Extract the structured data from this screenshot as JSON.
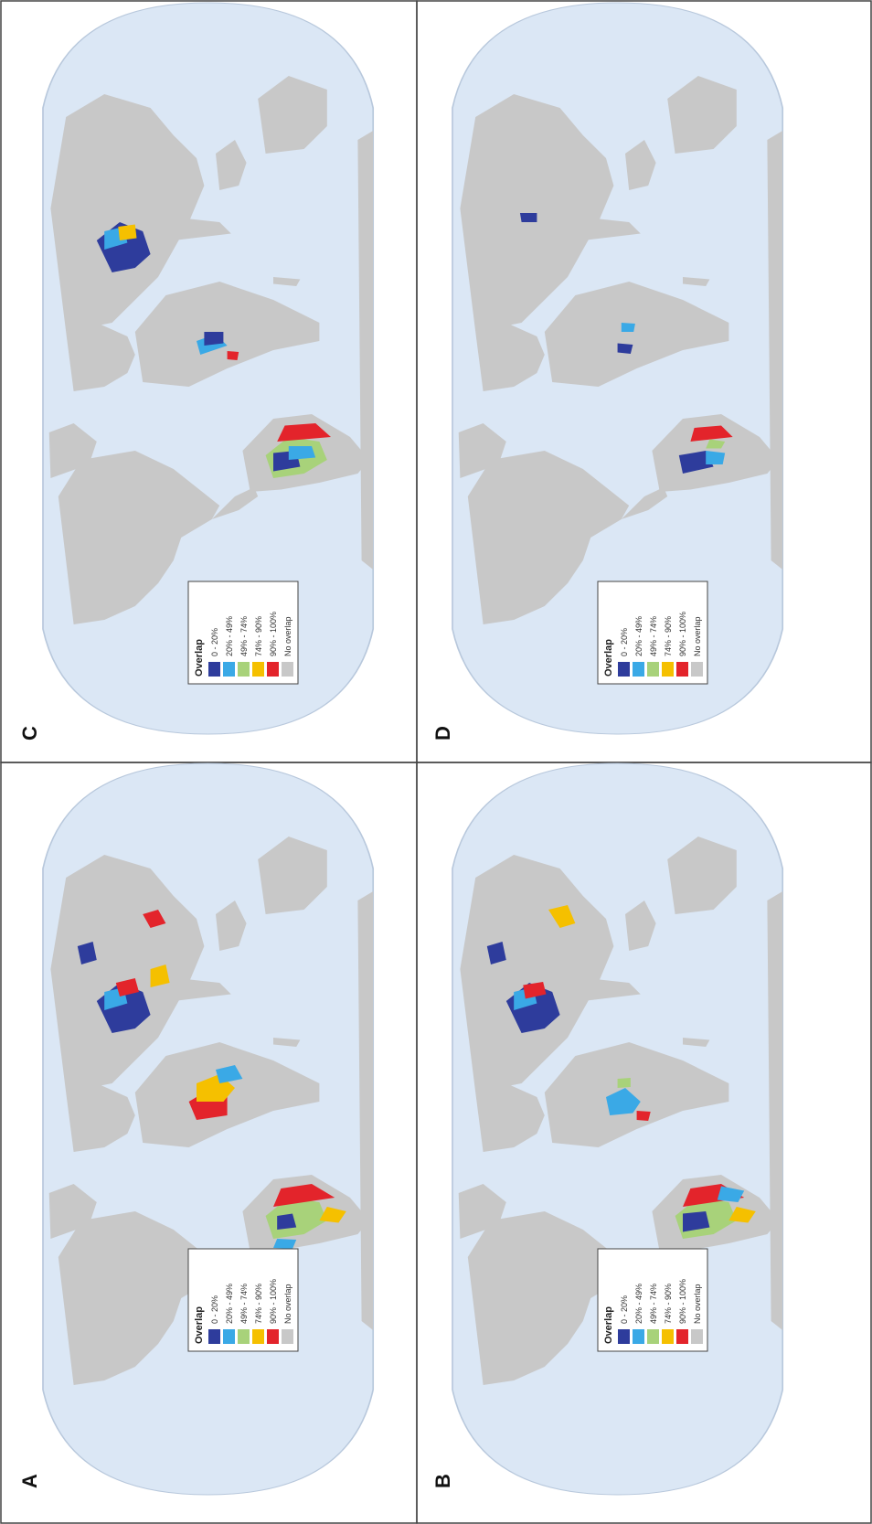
{
  "figure": {
    "panels": [
      {
        "id": "A",
        "label": "A"
      },
      {
        "id": "B",
        "label": "B"
      },
      {
        "id": "C",
        "label": "C"
      },
      {
        "id": "D",
        "label": "D"
      }
    ],
    "legend": {
      "title": "Overlap",
      "items": [
        {
          "label": "0 - 20%",
          "color": "#2e3c9c"
        },
        {
          "label": "20% - 49%",
          "color": "#3aa9e6"
        },
        {
          "label": "49% - 74%",
          "color": "#a8d27a"
        },
        {
          "label": "74% - 90%",
          "color": "#f5c000"
        },
        {
          "label": "90% - 100%",
          "color": "#e3242b"
        },
        {
          "label": "No overlap",
          "color": "#c8c8c8"
        }
      ]
    },
    "colors": {
      "ocean": "#dbe7f5",
      "land": "#c8c8c8",
      "border": "#444444"
    }
  }
}
